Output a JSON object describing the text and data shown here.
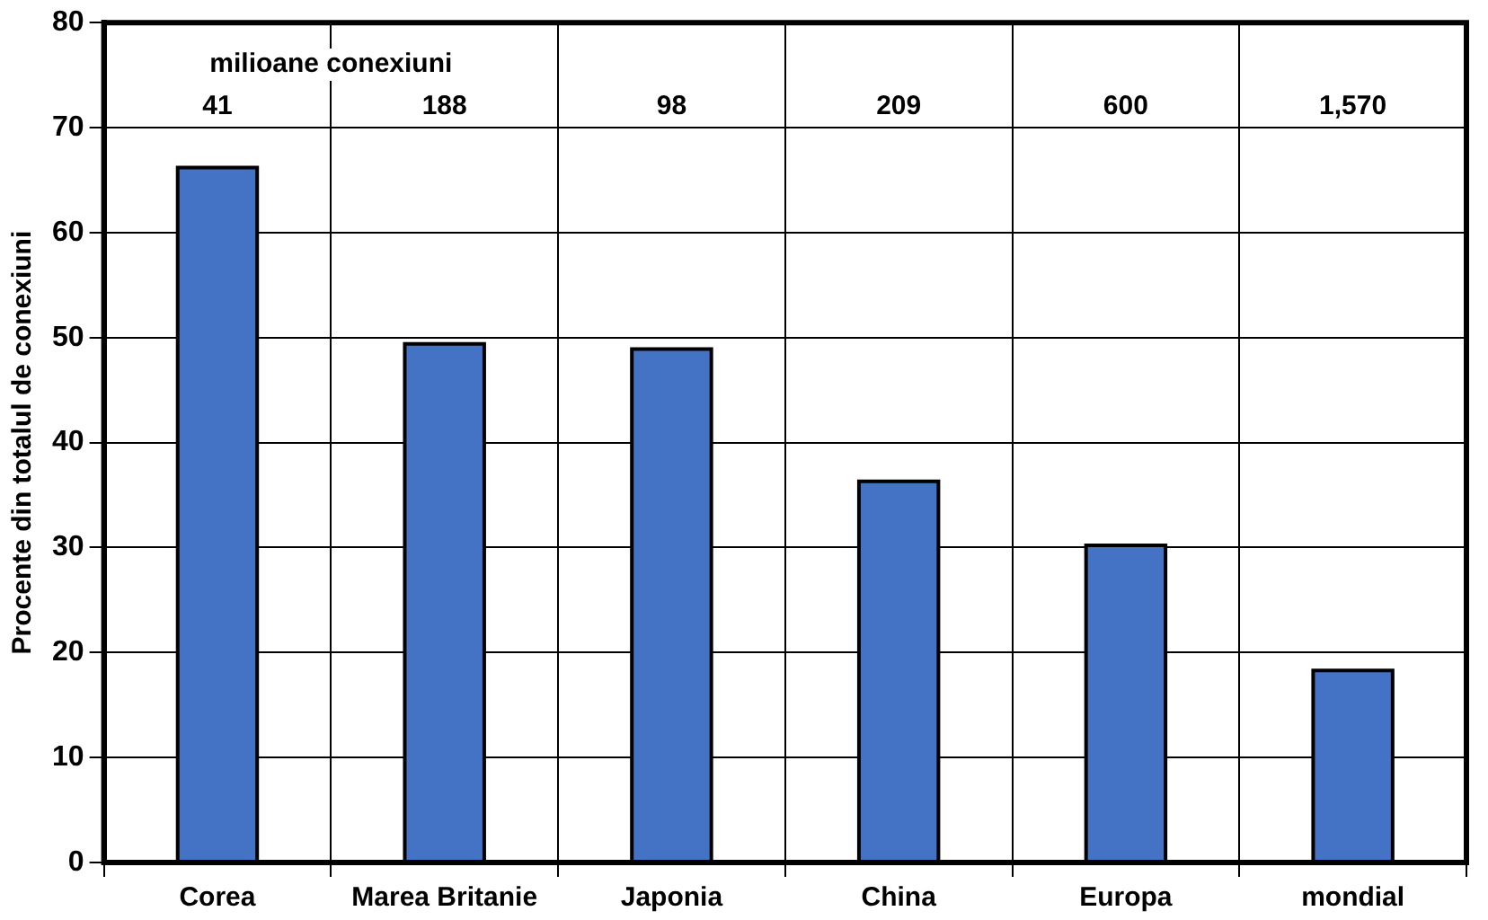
{
  "chart_data": {
    "type": "bar",
    "ylabel": "Procente din totalul de conexiuni",
    "categories": [
      "Corea",
      "Marea Britanie",
      "Japonia",
      "China",
      "Europa",
      "mondial"
    ],
    "values": [
      66.2,
      49.4,
      48.9,
      36.3,
      30.2,
      18.3
    ],
    "color": "#4472c4",
    "ylim": [
      0,
      80
    ],
    "yticks": [
      0,
      10,
      20,
      30,
      40,
      50,
      60,
      70,
      80
    ],
    "grid": true,
    "legend": false,
    "annotations": [
      "milioane conexiuni",
      "41",
      "188",
      "98",
      "209",
      "600",
      "1,570"
    ]
  }
}
